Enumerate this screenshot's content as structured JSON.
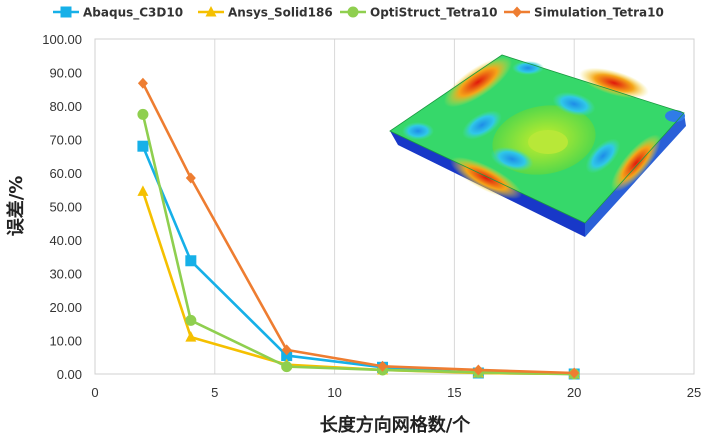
{
  "chart_data": {
    "type": "line",
    "title": "",
    "xlabel": "长度方向网格数/个",
    "ylabel": "误差/%",
    "xlim": [
      0,
      25
    ],
    "ylim": [
      0,
      100
    ],
    "x_ticks": [
      "0",
      "5",
      "10",
      "15",
      "20",
      "25"
    ],
    "y_ticks": [
      "0.00",
      "10.00",
      "20.00",
      "30.00",
      "40.00",
      "50.00",
      "60.00",
      "70.00",
      "80.00",
      "90.00",
      "100.00"
    ],
    "grid": "vertical",
    "legend_position": "top",
    "inset_image": "fea-plate-stress-contour",
    "series": [
      {
        "name": "Abaqus_C3D10",
        "color": "#16b0e8",
        "marker": "square",
        "x": [
          2,
          4,
          8,
          12,
          16,
          20
        ],
        "y": [
          68.0,
          33.8,
          5.5,
          2.0,
          0.3,
          0.0
        ]
      },
      {
        "name": "Ansys_Solid186",
        "color": "#f5c000",
        "marker": "triangle",
        "x": [
          2,
          4,
          8,
          12,
          16,
          20
        ],
        "y": [
          54.5,
          11.0,
          2.8,
          1.2,
          0.3,
          0.0
        ]
      },
      {
        "name": "OptiStruct_Tetra10",
        "color": "#8fcf4f",
        "marker": "circle",
        "x": [
          2,
          4,
          8,
          12,
          16,
          20
        ],
        "y": [
          77.5,
          16.0,
          2.2,
          1.2,
          0.5,
          0.0
        ]
      },
      {
        "name": "Simulation_Tetra10",
        "color": "#ee7d31",
        "marker": "diamond",
        "x": [
          2,
          4,
          8,
          12,
          16,
          20
        ],
        "y": [
          86.8,
          58.5,
          7.2,
          2.3,
          1.2,
          0.3
        ]
      }
    ]
  }
}
